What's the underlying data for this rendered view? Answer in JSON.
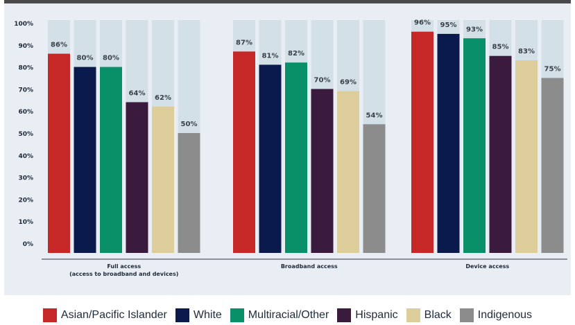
{
  "colors": {
    "panel_bg": "#e8eef3",
    "ghost_bar": "#d3e0e8",
    "axis_text": "#1e2a3a",
    "value_text": "#3a3f47"
  },
  "legend": [
    {
      "name": "Asian/Pacific Islander",
      "color": "#c62828"
    },
    {
      "name": "White",
      "color": "#0b1a4d"
    },
    {
      "name": "Multiracial/Other",
      "color": "#0a9068"
    },
    {
      "name": "Hispanic",
      "color": "#3a1a3d"
    },
    {
      "name": "Black",
      "color": "#dccd9b"
    },
    {
      "name": "Indigenous",
      "color": "#8c8c8c"
    }
  ],
  "chart_data": {
    "type": "bar",
    "categories": [
      "Full access\n(access to broadband and devices)",
      "Broadband access",
      "Device access"
    ],
    "series": [
      {
        "name": "Asian/Pacific Islander",
        "values": [
          86,
          87,
          96
        ]
      },
      {
        "name": "White",
        "values": [
          80,
          81,
          95
        ]
      },
      {
        "name": "Multiracial/Other",
        "values": [
          80,
          82,
          93
        ]
      },
      {
        "name": "Hispanic",
        "values": [
          64,
          70,
          85
        ]
      },
      {
        "name": "Black",
        "values": [
          62,
          69,
          83
        ]
      },
      {
        "name": "Indigenous",
        "values": [
          50,
          54,
          75
        ]
      }
    ],
    "ylim": [
      0,
      100
    ],
    "y_ticks": [
      "0%",
      "10%",
      "20%",
      "30%",
      "40%",
      "50%",
      "60%",
      "70%",
      "80%",
      "90%",
      "100%"
    ],
    "value_suffix": "%",
    "legend_position": "bottom",
    "grid": false
  }
}
